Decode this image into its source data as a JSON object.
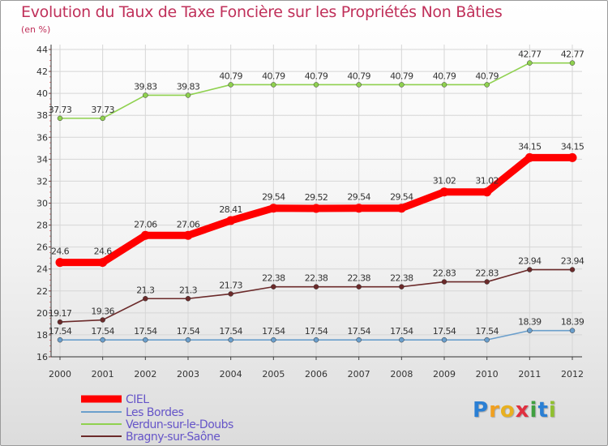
{
  "chart_data": {
    "type": "line",
    "title": "Evolution du Taux de Taxe Foncière sur les Propriétés Non Bâties",
    "subtitle": "(en %)",
    "x": [
      "2000",
      "2001",
      "2002",
      "2003",
      "2004",
      "2005",
      "2006",
      "2007",
      "2008",
      "2009",
      "2010",
      "2011",
      "2012"
    ],
    "ylim": [
      16,
      44
    ],
    "yticks": [
      16,
      18,
      20,
      22,
      24,
      26,
      28,
      30,
      32,
      34,
      36,
      38,
      40,
      42,
      44
    ],
    "grid": true,
    "legend_position": "bottom-left",
    "series": [
      {
        "name": "CIEL",
        "color": "#ff0000",
        "values": [
          24.6,
          24.6,
          27.06,
          27.06,
          28.41,
          29.54,
          29.52,
          29.54,
          29.54,
          31.02,
          31.02,
          34.15,
          34.15
        ],
        "labels": [
          "24.6",
          "24.6",
          "27.06",
          "27.06",
          "28.41",
          "29.54",
          "29.52",
          "29.54",
          "29.54",
          "31.02",
          "31.02",
          "34.15",
          "34.15"
        ]
      },
      {
        "name": "Les Bordes",
        "color": "#6b9fcc",
        "values": [
          17.54,
          17.54,
          17.54,
          17.54,
          17.54,
          17.54,
          17.54,
          17.54,
          17.54,
          17.54,
          17.54,
          18.39,
          18.39
        ],
        "labels": [
          "17.54",
          "17.54",
          "17.54",
          "17.54",
          "17.54",
          "17.54",
          "17.54",
          "17.54",
          "17.54",
          "17.54",
          "17.54",
          "18.39",
          "18.39"
        ]
      },
      {
        "name": "Verdun-sur-le-Doubs",
        "color": "#8fd14f",
        "values": [
          37.73,
          37.73,
          39.83,
          39.83,
          40.79,
          40.79,
          40.79,
          40.79,
          40.79,
          40.79,
          40.79,
          42.77,
          42.77
        ],
        "labels": [
          "37.73",
          "37.73",
          "39.83",
          "39.83",
          "40.79",
          "40.79",
          "40.79",
          "40.79",
          "40.79",
          "40.79",
          "40.79",
          "42.77",
          "42.77"
        ]
      },
      {
        "name": "Bragny-sur-Saône",
        "color": "#6b2a2a",
        "values": [
          19.17,
          19.36,
          21.3,
          21.3,
          21.73,
          22.38,
          22.38,
          22.38,
          22.38,
          22.83,
          22.83,
          23.94,
          23.94
        ],
        "labels": [
          "19.17",
          "19.36",
          "21.3",
          "21.3",
          "21.73",
          "22.38",
          "22.38",
          "22.38",
          "22.38",
          "22.83",
          "22.83",
          "23.94",
          "23.94"
        ]
      }
    ]
  },
  "logo": {
    "letters": [
      "P",
      "r",
      "o",
      "x",
      "i",
      "t",
      "i"
    ],
    "colors": [
      "#2a7fd4",
      "#f0a020",
      "#e8b020",
      "#e03040",
      "#40a040",
      "#2a7fd4",
      "#90c030"
    ]
  }
}
